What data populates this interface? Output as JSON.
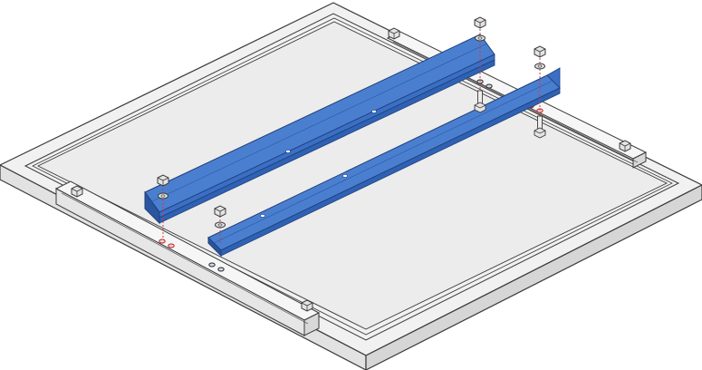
{
  "figure": {
    "kind": "isometric assembly illustration",
    "parts": [
      "panel-frame",
      "glass-panel",
      "rail-left",
      "rail-right",
      "bolts",
      "washers",
      "nuts"
    ]
  },
  "colors": {
    "background": "#ffffff",
    "frame": "#f1f1f1",
    "panel": "#e9e9e9",
    "outline": "#3a3a3a",
    "rail": "#3a6fc4",
    "rail_shadow": "#2a56a0",
    "hardware": "#e4e4e4",
    "guide_line": "#d23a3a"
  }
}
